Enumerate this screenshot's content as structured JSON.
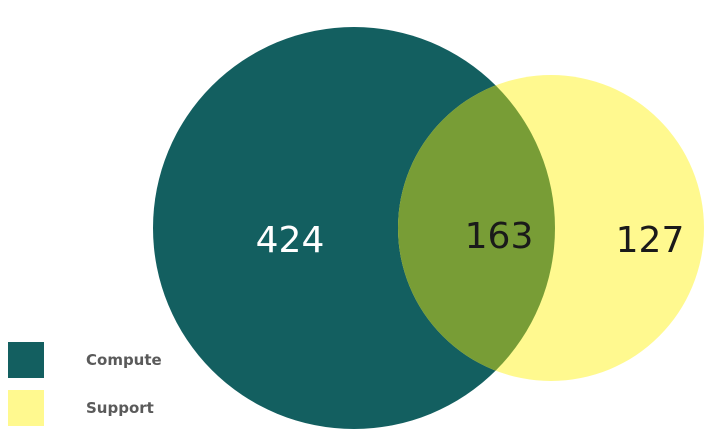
{
  "chart_data": {
    "type": "venn",
    "sets": [
      {
        "name": "Compute",
        "color": "#135f60",
        "only": 424
      },
      {
        "name": "Support",
        "color": "#fff98f",
        "only": 127
      }
    ],
    "intersection": {
      "value": 163,
      "color": "#789d36"
    },
    "label_colors": {
      "Compute": "#ffffff",
      "intersection": "#1a1a1a",
      "Support": "#1a1a1a"
    },
    "legend_position": "bottom-left"
  }
}
